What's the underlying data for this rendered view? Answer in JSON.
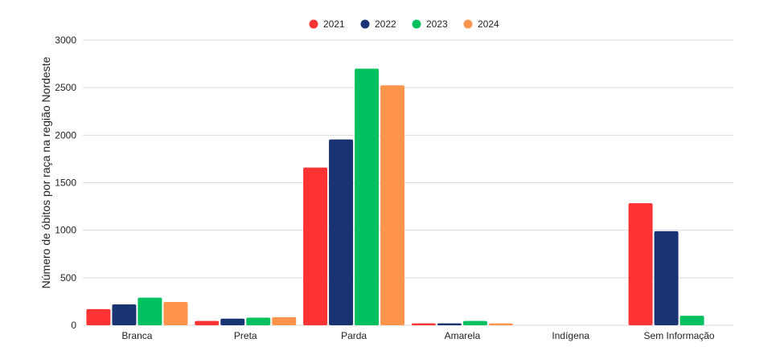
{
  "chart_data": {
    "type": "bar",
    "title": "",
    "xlabel": "",
    "ylabel": "Número de óbitos por raça na região Nordeste",
    "categories": [
      "Branca",
      "Preta",
      "Parda",
      "Amarela",
      "Indígena",
      "Sem Informação"
    ],
    "series": [
      {
        "name": "2021",
        "color": "#ff3333",
        "values": [
          170,
          45,
          1660,
          20,
          0,
          1285
        ]
      },
      {
        "name": "2022",
        "color": "#1a3373",
        "values": [
          220,
          70,
          1955,
          20,
          0,
          990
        ]
      },
      {
        "name": "2023",
        "color": "#00c060",
        "values": [
          290,
          80,
          2700,
          45,
          0,
          100
        ]
      },
      {
        "name": "2024",
        "color": "#ff944d",
        "values": [
          245,
          85,
          2525,
          20,
          0,
          0
        ]
      }
    ],
    "ylim": [
      0,
      3000
    ],
    "yticks": [
      0,
      500,
      1000,
      1500,
      2000,
      2500,
      3000
    ],
    "grid": true,
    "legend_position": "top-center"
  }
}
